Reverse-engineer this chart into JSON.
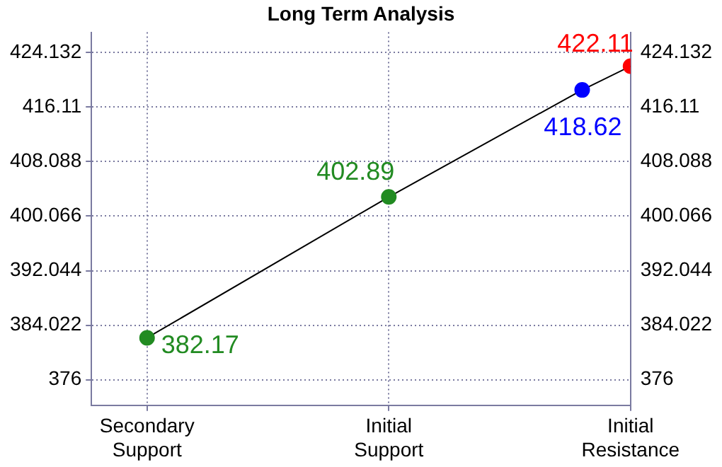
{
  "chart_data": {
    "type": "line",
    "title": "Long Term Analysis",
    "categories": [
      "Secondary Support",
      null,
      null,
      null,
      null,
      "Initial Support",
      null,
      null,
      null,
      null,
      "Initial Resistance"
    ],
    "ylim": [
      372.25,
      427.1
    ],
    "yticks": [
      376,
      384.022,
      392.044,
      400.066,
      408.088,
      416.11,
      424.132
    ],
    "y2lim": [
      372.25,
      427.1
    ],
    "y2ticks": [
      376,
      384.022,
      392.044,
      400.066,
      408.088,
      416.11,
      424.132
    ],
    "series": [
      {
        "color": "#000000",
        "values": [
          382.17,
          null,
          null,
          null,
          null,
          402.89,
          null,
          null,
          null,
          418.62,
          422.11
        ],
        "colors": [
          "#228b22",
          null,
          null,
          null,
          null,
          "#228b22",
          null,
          null,
          null,
          "#0000ff",
          "#ff0000"
        ]
      }
    ],
    "marker": "circle",
    "data_labels": true,
    "grid": true,
    "legend": false
  }
}
